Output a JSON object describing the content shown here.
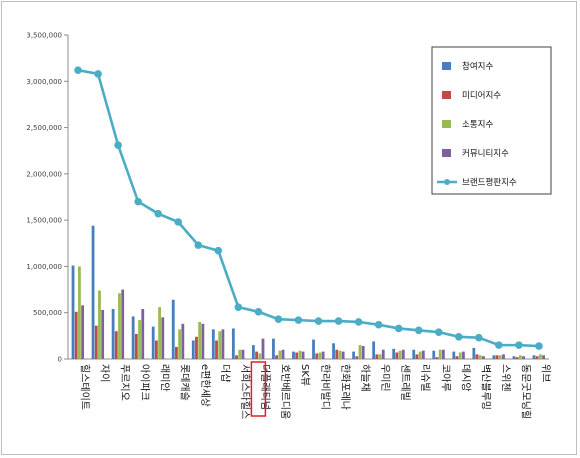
{
  "chart_data": {
    "type": "bar",
    "y_axis": {
      "ylim": [
        0,
        3500000
      ],
      "tick_step": 500000,
      "tick_labels": [
        "0",
        "500,000",
        "1,000,000",
        "1,500,000",
        "2,000,000",
        "2,500,000",
        "3,000,000",
        "3,500,000"
      ]
    },
    "grid": false,
    "legend_position": "top-right",
    "categories": [
      "힐스테이트",
      "자이",
      "푸르지오",
      "아이파크",
      "래미안",
      "롯데캐슬",
      "e편한세상",
      "더샵",
      "서희스타힐스",
      "더플래티넘",
      "호반베르디움",
      "SK뷰",
      "한라비발디",
      "한화포레나",
      "하늘채",
      "우미린",
      "센트레빌",
      "리슈빌",
      "코아루",
      "데시앙",
      "벽산블루밍",
      "스위첸",
      "동문굿모닝힐",
      "위브"
    ],
    "highlighted_category": "더플래티넘",
    "highlight_color": "#e02020",
    "series": [
      {
        "name": "참여지수",
        "kind": "bar",
        "color": "#4a7ebb",
        "values": [
          1010000,
          1440000,
          540000,
          460000,
          350000,
          640000,
          200000,
          320000,
          330000,
          150000,
          220000,
          80000,
          210000,
          170000,
          80000,
          190000,
          110000,
          100000,
          90000,
          80000,
          120000,
          40000,
          30000,
          40000
        ]
      },
      {
        "name": "미디어지수",
        "kind": "bar",
        "color": "#be4b48",
        "values": [
          510000,
          360000,
          300000,
          270000,
          200000,
          130000,
          240000,
          200000,
          40000,
          80000,
          40000,
          70000,
          60000,
          100000,
          30000,
          50000,
          70000,
          50000,
          20000,
          30000,
          50000,
          40000,
          20000,
          30000
        ]
      },
      {
        "name": "소통지수",
        "kind": "bar",
        "color": "#98b954",
        "values": [
          1000000,
          740000,
          710000,
          420000,
          560000,
          320000,
          400000,
          300000,
          100000,
          60000,
          90000,
          90000,
          70000,
          90000,
          150000,
          50000,
          90000,
          80000,
          100000,
          70000,
          40000,
          40000,
          40000,
          50000
        ]
      },
      {
        "name": "커뮤니티지수",
        "kind": "bar",
        "color": "#7d60a0",
        "values": [
          580000,
          530000,
          750000,
          540000,
          450000,
          380000,
          380000,
          320000,
          100000,
          220000,
          100000,
          80000,
          80000,
          80000,
          140000,
          100000,
          100000,
          90000,
          100000,
          80000,
          30000,
          50000,
          30000,
          40000
        ]
      },
      {
        "name": "브랜드평판지수",
        "kind": "line",
        "color": "#4bacc6",
        "values": [
          3120000,
          3080000,
          2310000,
          1700000,
          1570000,
          1480000,
          1230000,
          1170000,
          560000,
          510000,
          430000,
          420000,
          410000,
          410000,
          400000,
          370000,
          330000,
          310000,
          290000,
          240000,
          230000,
          150000,
          150000,
          140000
        ]
      }
    ]
  }
}
